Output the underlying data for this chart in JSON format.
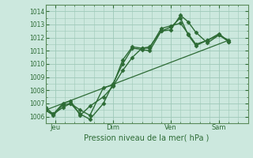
{
  "title": "",
  "xlabel": "Pression niveau de la mer( hPa )",
  "ylabel": "",
  "bg_color": "#cce8de",
  "line_color": "#2d6b35",
  "grid_color": "#9ec8b8",
  "axis_label_color": "#2d6b35",
  "tick_color": "#2d6b35",
  "spine_color": "#5a8a5a",
  "ylim": [
    1005.5,
    1014.5
  ],
  "yticks": [
    1006,
    1007,
    1008,
    1009,
    1010,
    1011,
    1012,
    1013,
    1014
  ],
  "xtick_labels": [
    "Jeu",
    "Dim",
    "Ven",
    "Sam"
  ],
  "xtick_positions": [
    0.5,
    3.5,
    6.5,
    9.0
  ],
  "xlim": [
    0.0,
    10.5
  ],
  "series1": {
    "x": [
      0.0,
      0.4,
      0.9,
      1.3,
      1.8,
      2.3,
      3.0,
      3.5,
      4.0,
      4.5,
      5.0,
      5.4,
      6.0,
      6.5,
      7.0,
      7.4,
      7.8,
      8.4,
      9.0,
      9.5
    ],
    "y": [
      1006.7,
      1006.2,
      1006.7,
      1007.0,
      1006.2,
      1005.8,
      1007.0,
      1008.5,
      1010.0,
      1011.2,
      1011.1,
      1011.0,
      1012.5,
      1012.6,
      1013.7,
      1013.2,
      1012.4,
      1011.6,
      1012.2,
      1011.8
    ],
    "marker": "D",
    "markersize": 2.5,
    "linewidth": 1.0
  },
  "series2": {
    "x": [
      0.0,
      0.4,
      0.9,
      1.3,
      1.8,
      2.3,
      3.0,
      3.5,
      4.0,
      4.5,
      5.0,
      5.4,
      6.0,
      6.5,
      7.0,
      7.4,
      7.8,
      8.4,
      9.0,
      9.5
    ],
    "y": [
      1006.5,
      1006.1,
      1006.9,
      1007.0,
      1006.5,
      1006.1,
      1008.2,
      1008.4,
      1010.3,
      1011.3,
      1011.2,
      1011.2,
      1012.7,
      1012.9,
      1013.1,
      1012.3,
      1011.5,
      1011.8,
      1012.2,
      1011.7
    ],
    "marker": "D",
    "markersize": 2.5,
    "linewidth": 1.0
  },
  "series3": {
    "x": [
      0.0,
      9.5
    ],
    "y": [
      1006.5,
      1011.8
    ],
    "linewidth": 0.9
  },
  "series4": {
    "x": [
      0.0,
      0.4,
      0.9,
      1.3,
      1.8,
      2.3,
      3.0,
      3.5,
      4.0,
      4.5,
      5.0,
      5.4,
      6.0,
      6.5,
      7.0,
      7.4,
      7.8,
      8.4,
      9.0,
      9.5
    ],
    "y": [
      1006.5,
      1006.2,
      1007.0,
      1007.2,
      1006.1,
      1006.8,
      1007.5,
      1008.3,
      1009.5,
      1010.5,
      1011.2,
      1011.3,
      1012.5,
      1012.8,
      1013.5,
      1012.2,
      1011.4,
      1011.8,
      1012.3,
      1011.7
    ],
    "marker": "D",
    "markersize": 2.5,
    "linewidth": 1.0
  }
}
